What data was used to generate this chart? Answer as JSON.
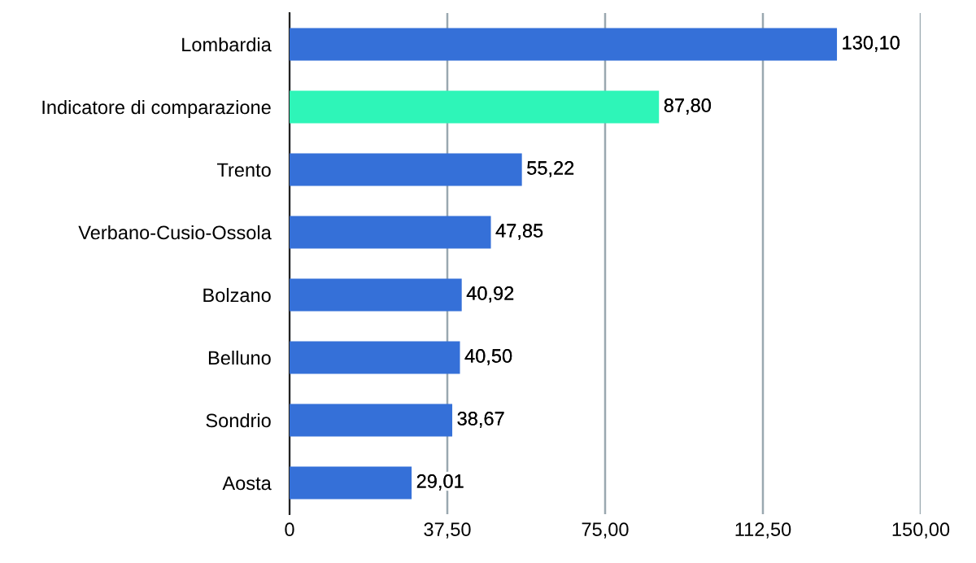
{
  "chart_data": {
    "type": "bar",
    "orientation": "horizontal",
    "categories": [
      "Lombardia",
      "Indicatore di comparazione",
      "Trento",
      "Verbano-Cusio-Ossola",
      "Bolzano",
      "Belluno",
      "Sondrio",
      "Aosta"
    ],
    "values": [
      130.1,
      87.8,
      55.22,
      47.85,
      40.92,
      40.5,
      38.67,
      29.01
    ],
    "colors": [
      "#3570d8",
      "#2ef5b8",
      "#3570d8",
      "#3570d8",
      "#3570d8",
      "#3570d8",
      "#3570d8",
      "#3570d8"
    ],
    "value_labels": [
      "130,10",
      "87,80",
      "55,22",
      "47,85",
      "40,92",
      "40,50",
      "38,67",
      "29,01"
    ],
    "xlim": [
      0,
      150
    ],
    "xticks": [
      {
        "value": 0,
        "label": "0"
      },
      {
        "value": 37.5,
        "label": "37,50"
      },
      {
        "value": 75,
        "label": "75,00"
      },
      {
        "value": 112.5,
        "label": "112,50"
      },
      {
        "value": 150,
        "label": "150,00"
      }
    ],
    "grid": "x",
    "legend": false
  }
}
